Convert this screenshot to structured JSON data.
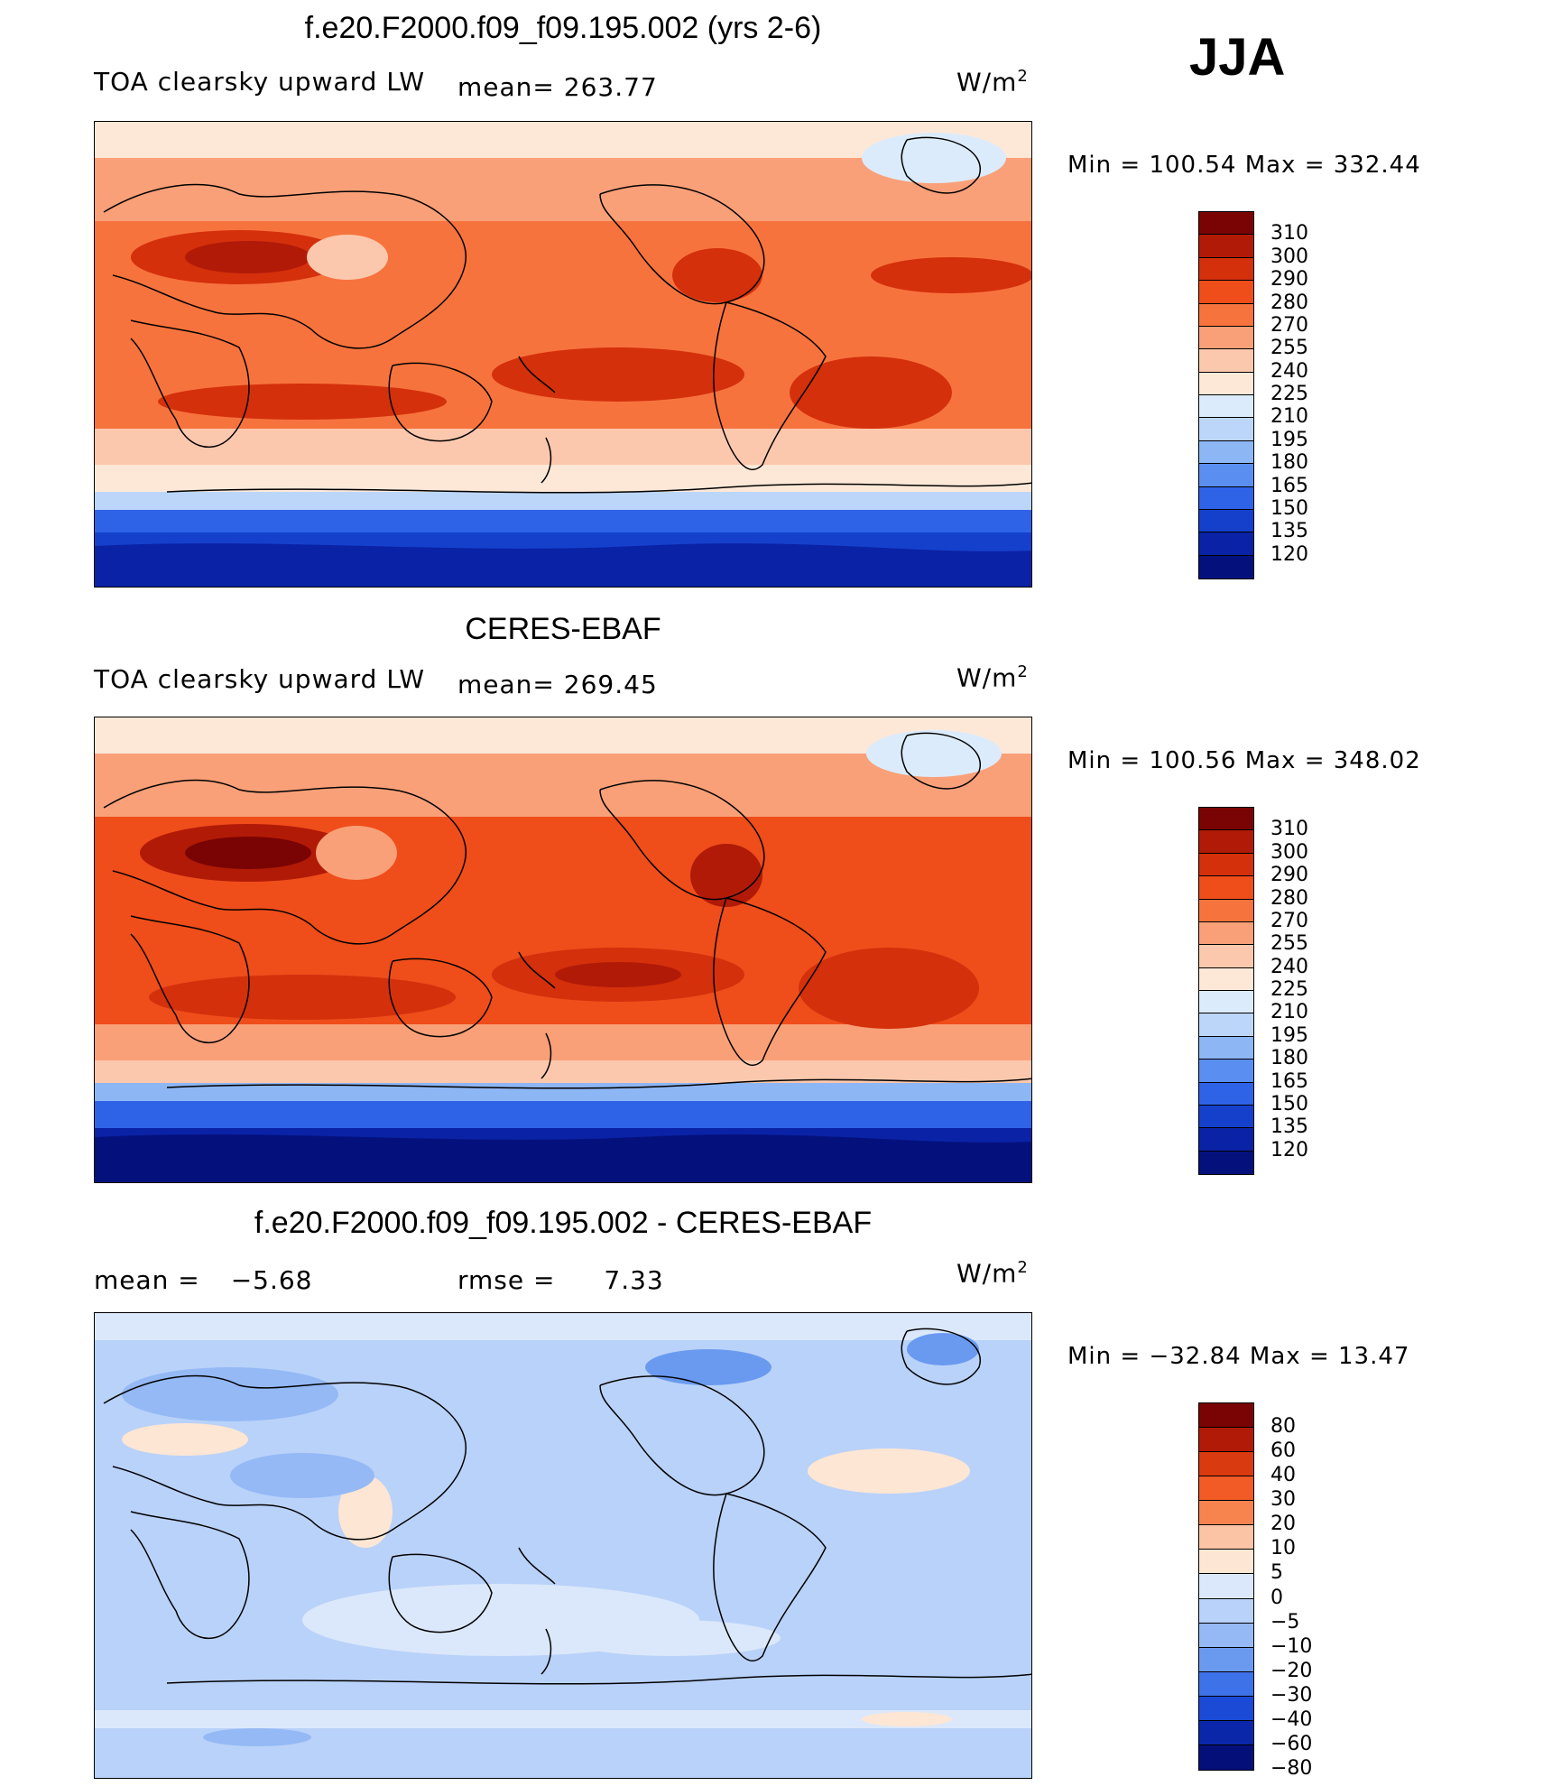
{
  "season": "JJA",
  "panels": [
    {
      "title": "f.e20.F2000.f09_f09.195.002 (yrs 2-6)",
      "left_label": "TOA clearsky upward LW",
      "stat_label": "mean=",
      "stat_value": "263.77",
      "stat2_label": "",
      "stat2_value": "",
      "units": "W/m",
      "units_sup": "2",
      "min_max": "Min  =  100.54  Max  =  332.44",
      "colorbar_labels": [
        "310",
        "300",
        "290",
        "280",
        "270",
        "255",
        "240",
        "225",
        "210",
        "195",
        "180",
        "165",
        "150",
        "135",
        "120"
      ]
    },
    {
      "title": "CERES-EBAF",
      "left_label": "TOA clearsky upward LW",
      "stat_label": "mean=",
      "stat_value": "269.45",
      "stat2_label": "",
      "stat2_value": "",
      "units": "W/m",
      "units_sup": "2",
      "min_max": "Min  =  100.56  Max  =  348.02",
      "colorbar_labels": [
        "310",
        "300",
        "290",
        "280",
        "270",
        "255",
        "240",
        "225",
        "210",
        "195",
        "180",
        "165",
        "150",
        "135",
        "120"
      ]
    },
    {
      "title": "f.e20.F2000.f09_f09.195.002 - CERES-EBAF",
      "left_label": "mean  =",
      "stat_label": "",
      "stat_value": "−5.68",
      "stat2_label": "rmse  =",
      "stat2_value": "7.33",
      "units": "W/m",
      "units_sup": "2",
      "min_max": "Min  =  −32.84  Max  =   13.47",
      "colorbar_labels": [
        "80",
        "60",
        "40",
        "30",
        "20",
        "10",
        "5",
        "0",
        "−5",
        "−10",
        "−20",
        "−30",
        "−40",
        "−60",
        "−80"
      ]
    }
  ],
  "colors": {
    "field_palette": [
      "#7a0403",
      "#b11a07",
      "#d4300c",
      "#ef4d1a",
      "#f7733d",
      "#f9a078",
      "#fcc8ad",
      "#fde8d8",
      "#dcebfb",
      "#bcd6fa",
      "#8db6f5",
      "#5a8ef0",
      "#2e63e8",
      "#1540cc",
      "#0a22a5",
      "#04117d"
    ],
    "diff_palette": [
      "#7a0403",
      "#b11a07",
      "#d93a0f",
      "#f25a26",
      "#f7844f",
      "#fbc4a4",
      "#fde6d4",
      "#dbe8fb",
      "#b9d2f9",
      "#94b9f5",
      "#6a9af0",
      "#3d72e8",
      "#1a4ad6",
      "#0a27aa",
      "#050f7a"
    ]
  }
}
